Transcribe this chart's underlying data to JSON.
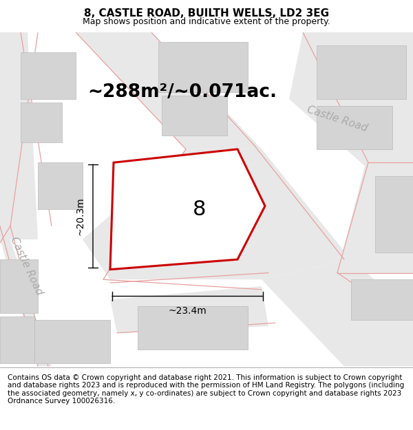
{
  "title": "8, CASTLE ROAD, BUILTH WELLS, LD2 3EG",
  "subtitle": "Map shows position and indicative extent of the property.",
  "area_label": "~288m²/~0.071ac.",
  "plot_number": "8",
  "dim_width": "~23.4m",
  "dim_height": "~20.3m",
  "road_label_left": "Castle Road",
  "road_label_center": "Castle Road",
  "road_label_right": "Castle Road",
  "footer": "Contains OS data © Crown copyright and database right 2021. This information is subject to Crown copyright and database rights 2023 and is reproduced with the permission of HM Land Registry. The polygons (including the associated geometry, namely x, y co-ordinates) are subject to Crown copyright and database rights 2023 Ordnance Survey 100026316.",
  "bg_color": "#ffffff",
  "map_bg": "#f0f0f0",
  "building_fill": "#d4d4d4",
  "building_edge": "#bbbbbb",
  "road_fill": "#e8e8e8",
  "road_line_color": "#e8a0a0",
  "plot_fill": "#ffffff",
  "plot_edge": "#cc0000",
  "plot_edge_width": 2.2,
  "title_fontsize": 11,
  "subtitle_fontsize": 9,
  "area_fontsize": 19,
  "plot_num_fontsize": 22,
  "road_label_fontsize": 11,
  "footer_fontsize": 7.5,
  "dim_fontsize": 10,
  "annotation_color": "#333333"
}
